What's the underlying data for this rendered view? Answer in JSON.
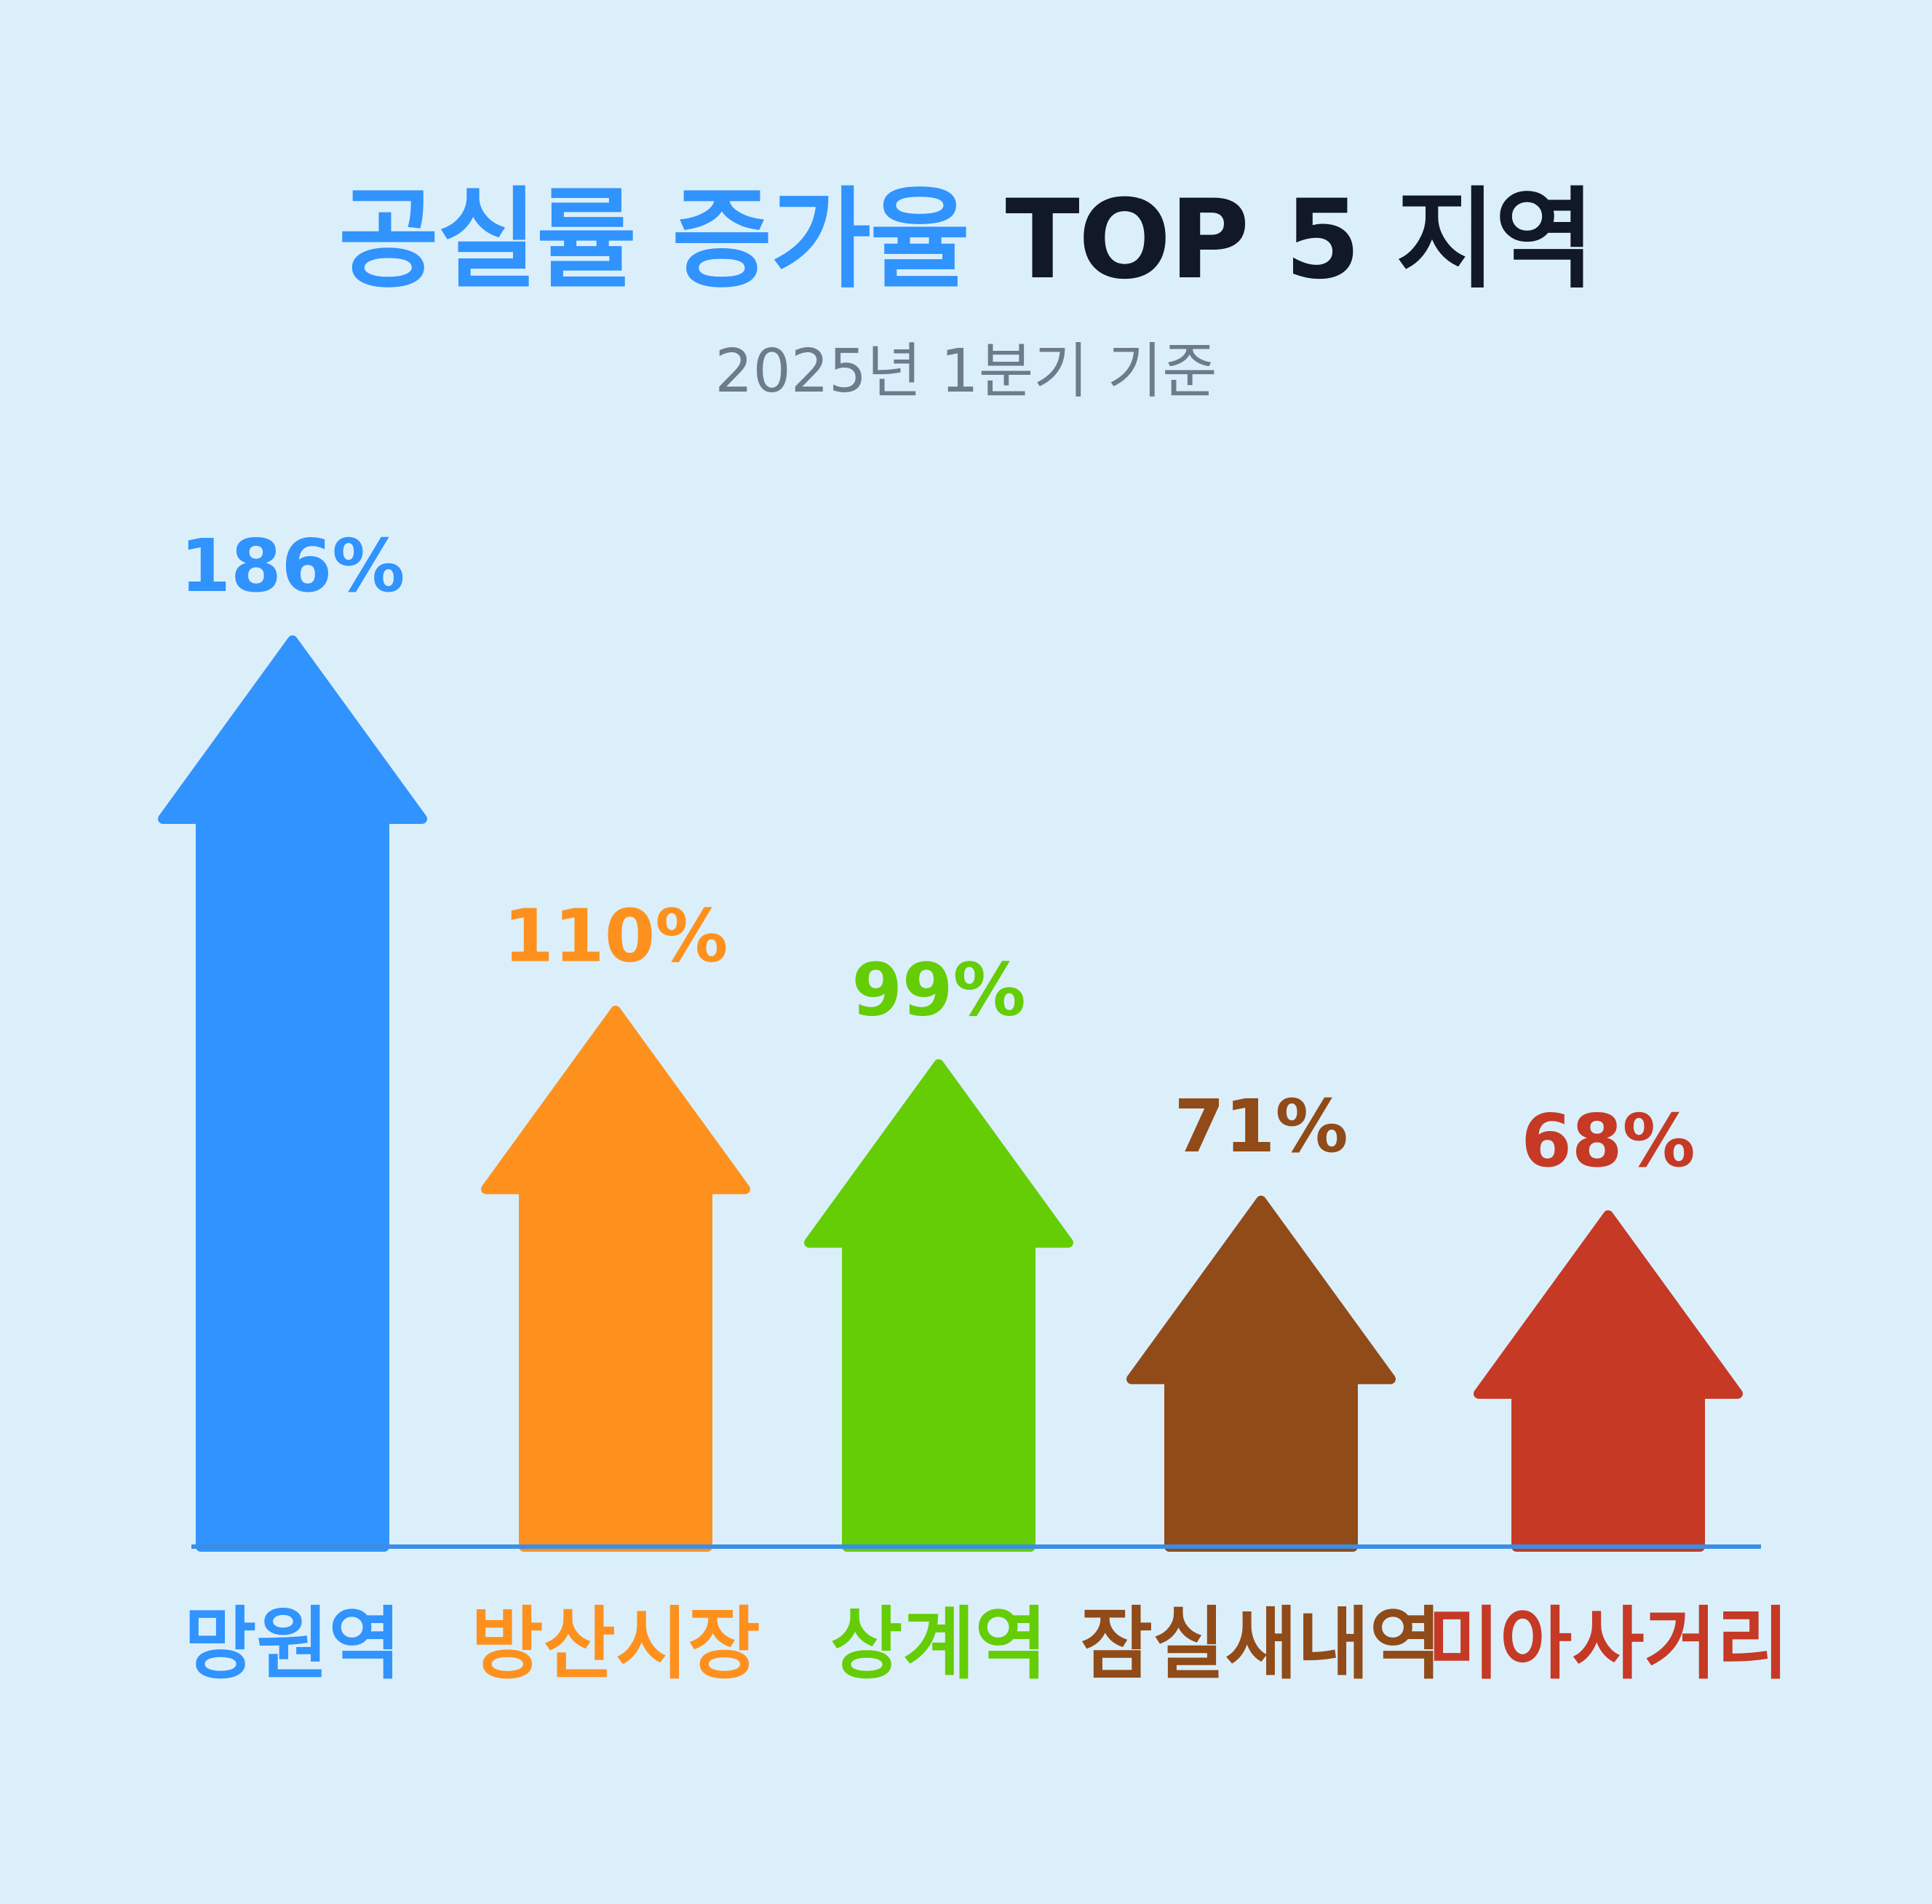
{
  "header": {
    "title_part1": "공실률 증가율",
    "title_part2": "TOP 5 지역",
    "subtitle": "2025년 1분기 기준"
  },
  "chart_data": {
    "type": "bar",
    "title": "공실률 증가율 TOP 5 지역",
    "subtitle": "2025년 1분기 기준",
    "xlabel": "",
    "ylabel": "",
    "unit": "%",
    "ylim": [
      0,
      186
    ],
    "grid": false,
    "categories": [
      "망원역",
      "방산시장",
      "상계역",
      "잠실새내역",
      "미아사거리"
    ],
    "values": [
      186,
      110,
      99,
      71,
      68
    ],
    "value_labels": [
      "186%",
      "110%",
      "99%",
      "71%",
      "68%"
    ],
    "colors": [
      "#3093fe",
      "#fe911e",
      "#65cd05",
      "#904b18",
      "#c53925"
    ],
    "baseline_color": "#3a8ee6",
    "mark_shape": "upward-arrow"
  }
}
